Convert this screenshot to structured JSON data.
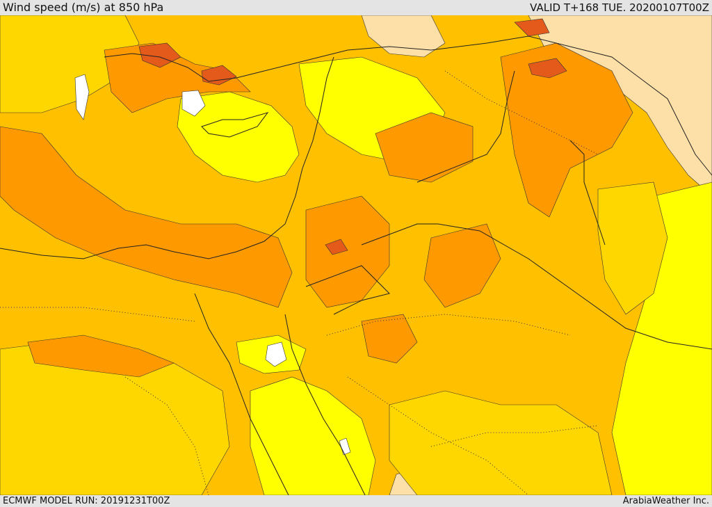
{
  "header": {
    "title": "Wind speed (m/s) at 850 hPa",
    "valid": "VALID T+168 TUE. 20200107T00Z"
  },
  "footer": {
    "model_run": "ECMWF MODEL RUN: 20191231T00Z",
    "credit": "ArabiaWeather Inc."
  },
  "colors": {
    "calm": "#ffffff",
    "light": "#ffff00",
    "moderate": "#ffd700",
    "fresh": "#ffc000",
    "strong": "#ff9900",
    "very_strong": "#ff7a1a",
    "gale": "#e35a1a",
    "pale": "#fde0a8",
    "border": "#222222"
  }
}
